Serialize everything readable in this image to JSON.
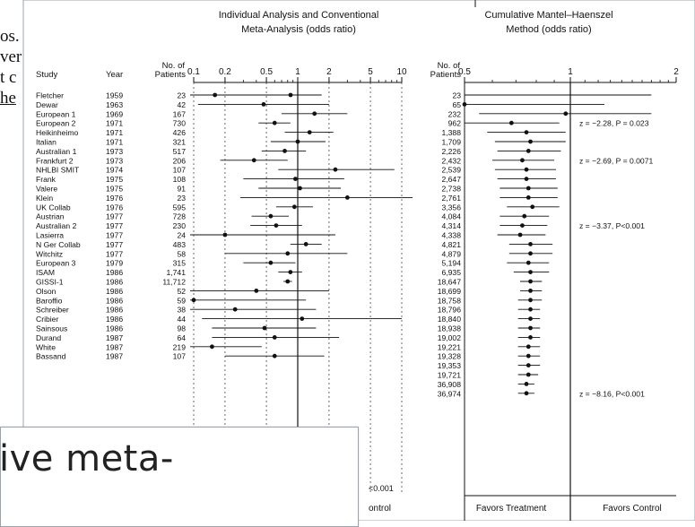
{
  "background_text": [
    "os.",
    "ver",
    "t c",
    "he"
  ],
  "left_panel": {
    "title_line1": "Individual Analysis and Conventional",
    "title_line2": "Meta-Analysis (odds ratio)",
    "col_study": "Study",
    "col_year": "Year",
    "col_patients_1": "No. of",
    "col_patients_2": "Patients",
    "axis_ticks": [
      {
        "label": "0.1",
        "value": 0.1
      },
      {
        "label": "0.2",
        "value": 0.2
      },
      {
        "label": "0.5",
        "value": 0.5
      },
      {
        "label": "1",
        "value": 1
      },
      {
        "label": "2",
        "value": 2
      },
      {
        "label": "5",
        "value": 5
      },
      {
        "label": "10",
        "value": 10
      }
    ],
    "footer_fragment": "ontrol",
    "pvalue_fragment": "<0.001"
  },
  "right_panel": {
    "title_line1": "Cumulative Mantel–Haenszel",
    "title_line2": "Method (odds ratio)",
    "col_patients_1": "No. of",
    "col_patients_2": "Patients",
    "axis_ticks": [
      {
        "label": "0.5",
        "value": 0.5
      },
      {
        "label": "1",
        "value": 1
      },
      {
        "label": "2",
        "value": 2
      }
    ],
    "favors_treatment": "Favors Treatment",
    "favors_control": "Favors Control"
  },
  "chart_data": {
    "type": "forest",
    "x_scale": "log",
    "individual_xlim": [
      0.1,
      10
    ],
    "cumulative_xlim": [
      0.5,
      2
    ],
    "studies": [
      {
        "study": "Fletcher",
        "year": "1959",
        "patients": "23",
        "or": 0.16,
        "lo": 0.03,
        "hi": 1.7,
        "cum_patients": "23",
        "cum_or": 0.16,
        "cum_lo": 0.03,
        "cum_hi": 1.7
      },
      {
        "study": "Dewar",
        "year": "1963",
        "patients": "42",
        "or": 0.47,
        "lo": 0.11,
        "hi": 2.0,
        "cum_patients": "65",
        "cum_or": 0.5,
        "cum_lo": 0.2,
        "cum_hi": 1.25
      },
      {
        "study": "European 1",
        "year": "1969",
        "patients": "167",
        "or": 1.45,
        "lo": 0.7,
        "hi": 3.0,
        "cum_patients": "232",
        "cum_or": 0.97,
        "cum_lo": 0.55,
        "cum_hi": 1.7
      },
      {
        "study": "European 2",
        "year": "1971",
        "patients": "730",
        "or": 0.6,
        "lo": 0.42,
        "hi": 0.85,
        "cum_patients": "962",
        "cum_or": 0.68,
        "cum_lo": 0.5,
        "cum_hi": 0.93
      },
      {
        "study": "Heikinheimo",
        "year": "1971",
        "patients": "426",
        "or": 1.3,
        "lo": 0.75,
        "hi": 2.2,
        "cum_patients": "1,388",
        "cum_or": 0.75,
        "cum_lo": 0.58,
        "cum_hi": 0.97
      },
      {
        "study": "Italian",
        "year": "1971",
        "patients": "321",
        "or": 1.0,
        "lo": 0.55,
        "hi": 1.85,
        "cum_patients": "1,709",
        "cum_or": 0.77,
        "cum_lo": 0.61,
        "cum_hi": 0.97
      },
      {
        "study": "Australian 1",
        "year": "1973",
        "patients": "517",
        "or": 0.75,
        "lo": 0.45,
        "hi": 1.2,
        "cum_patients": "2,226",
        "cum_or": 0.76,
        "cum_lo": 0.62,
        "cum_hi": 0.94
      },
      {
        "study": "Frankfurt 2",
        "year": "1973",
        "patients": "206",
        "or": 0.38,
        "lo": 0.18,
        "hi": 0.8,
        "cum_patients": "2,432",
        "cum_or": 0.73,
        "cum_lo": 0.6,
        "cum_hi": 0.9
      },
      {
        "study": "NHLBI SMIT",
        "year": "1974",
        "patients": "107",
        "or": 2.3,
        "lo": 0.65,
        "hi": 8.5,
        "cum_patients": "2,539",
        "cum_or": 0.75,
        "cum_lo": 0.61,
        "cum_hi": 0.91
      },
      {
        "study": "Frank",
        "year": "1975",
        "patients": "108",
        "or": 0.95,
        "lo": 0.3,
        "hi": 2.8,
        "cum_patients": "2,647",
        "cum_or": 0.75,
        "cum_lo": 0.62,
        "cum_hi": 0.91
      },
      {
        "study": "Valere",
        "year": "1975",
        "patients": "91",
        "or": 1.05,
        "lo": 0.42,
        "hi": 2.6,
        "cum_patients": "2,738",
        "cum_or": 0.76,
        "cum_lo": 0.63,
        "cum_hi": 0.92
      },
      {
        "study": "Klein",
        "year": "1976",
        "patients": "23",
        "or": 3.0,
        "lo": 0.28,
        "hi": 20,
        "cum_patients": "2,761",
        "cum_or": 0.76,
        "cum_lo": 0.63,
        "cum_hi": 0.92
      },
      {
        "study": "UK Collab",
        "year": "1976",
        "patients": "595",
        "or": 0.93,
        "lo": 0.62,
        "hi": 1.4,
        "cum_patients": "3,356",
        "cum_or": 0.78,
        "cum_lo": 0.66,
        "cum_hi": 0.93
      },
      {
        "study": "Austrian",
        "year": "1977",
        "patients": "728",
        "or": 0.55,
        "lo": 0.36,
        "hi": 0.82,
        "cum_patients": "4,084",
        "cum_or": 0.74,
        "cum_lo": 0.63,
        "cum_hi": 0.87
      },
      {
        "study": "Australian 2",
        "year": "1977",
        "patients": "230",
        "or": 0.62,
        "lo": 0.35,
        "hi": 1.1,
        "cum_patients": "4,314",
        "cum_or": 0.73,
        "cum_lo": 0.63,
        "cum_hi": 0.86
      },
      {
        "study": "Lasierra",
        "year": "1977",
        "patients": "24",
        "or": 0.2,
        "lo": 0.03,
        "hi": 2.3,
        "cum_patients": "4,338",
        "cum_or": 0.72,
        "cum_lo": 0.62,
        "cum_hi": 0.85
      },
      {
        "study": "N Ger Collab",
        "year": "1977",
        "patients": "483",
        "or": 1.2,
        "lo": 0.85,
        "hi": 1.7,
        "cum_patients": "4,821",
        "cum_or": 0.77,
        "cum_lo": 0.67,
        "cum_hi": 0.89
      },
      {
        "study": "Witchitz",
        "year": "1977",
        "patients": "58",
        "or": 0.8,
        "lo": 0.2,
        "hi": 3.0,
        "cum_patients": "4,879",
        "cum_or": 0.77,
        "cum_lo": 0.67,
        "cum_hi": 0.89
      },
      {
        "study": "European 3",
        "year": "1979",
        "patients": "315",
        "or": 0.55,
        "lo": 0.3,
        "hi": 0.95,
        "cum_patients": "5,194",
        "cum_or": 0.76,
        "cum_lo": 0.66,
        "cum_hi": 0.87
      },
      {
        "study": "ISAM",
        "year": "1986",
        "patients": "1,741",
        "or": 0.85,
        "lo": 0.65,
        "hi": 1.1,
        "cum_patients": "6,935",
        "cum_or": 0.77,
        "cum_lo": 0.69,
        "cum_hi": 0.87
      },
      {
        "study": "GISSI-1",
        "year": "1986",
        "patients": "11,712",
        "or": 0.8,
        "lo": 0.73,
        "hi": 0.88,
        "cum_patients": "18,647",
        "cum_or": 0.77,
        "cum_lo": 0.72,
        "cum_hi": 0.83
      },
      {
        "study": "Olson",
        "year": "1986",
        "patients": "52",
        "or": 0.4,
        "lo": 0.08,
        "hi": 2.0,
        "cum_patients": "18,699",
        "cum_or": 0.77,
        "cum_lo": 0.72,
        "cum_hi": 0.83
      },
      {
        "study": "Baroffio",
        "year": "1986",
        "patients": "59",
        "or": 0.1,
        "lo": 0.01,
        "hi": 1.2,
        "cum_patients": "18,758",
        "cum_or": 0.77,
        "cum_lo": 0.71,
        "cum_hi": 0.83
      },
      {
        "study": "Schreiber",
        "year": "1986",
        "patients": "38",
        "or": 0.25,
        "lo": 0.04,
        "hi": 1.5,
        "cum_patients": "18,796",
        "cum_or": 0.77,
        "cum_lo": 0.71,
        "cum_hi": 0.82
      },
      {
        "study": "Cribier",
        "year": "1986",
        "patients": "44",
        "or": 1.1,
        "lo": 0.12,
        "hi": 10,
        "cum_patients": "18,840",
        "cum_or": 0.77,
        "cum_lo": 0.71,
        "cum_hi": 0.82
      },
      {
        "study": "Sainsous",
        "year": "1986",
        "patients": "98",
        "or": 0.48,
        "lo": 0.15,
        "hi": 1.5,
        "cum_patients": "18,938",
        "cum_or": 0.77,
        "cum_lo": 0.71,
        "cum_hi": 0.82
      },
      {
        "study": "Durand",
        "year": "1987",
        "patients": "64",
        "or": 0.6,
        "lo": 0.15,
        "hi": 2.5,
        "cum_patients": "19,002",
        "cum_or": 0.77,
        "cum_lo": 0.71,
        "cum_hi": 0.82
      },
      {
        "study": "White",
        "year": "1987",
        "patients": "219",
        "or": 0.15,
        "lo": 0.05,
        "hi": 0.45,
        "cum_patients": "19,221",
        "cum_or": 0.76,
        "cum_lo": 0.71,
        "cum_hi": 0.82
      },
      {
        "study": "Bassand",
        "year": "1987",
        "patients": "107",
        "or": 0.6,
        "lo": 0.2,
        "hi": 1.8,
        "cum_patients": "19,328",
        "cum_or": 0.76,
        "cum_lo": 0.71,
        "cum_hi": 0.82
      },
      {
        "study": "",
        "year": "",
        "patients": "",
        "or": null,
        "lo": null,
        "hi": null,
        "cum_patients": "19,353",
        "cum_or": 0.76,
        "cum_lo": 0.71,
        "cum_hi": 0.82
      },
      {
        "study": "",
        "year": "",
        "patients": "",
        "or": null,
        "lo": null,
        "hi": null,
        "cum_patients": "19,721",
        "cum_or": 0.76,
        "cum_lo": 0.71,
        "cum_hi": 0.81
      },
      {
        "study": "",
        "year": "",
        "patients": "",
        "or": null,
        "lo": null,
        "hi": null,
        "cum_patients": "36,908",
        "cum_or": 0.75,
        "cum_lo": 0.71,
        "cum_hi": 0.79
      },
      {
        "study": "",
        "year": "",
        "patients": "",
        "or": null,
        "lo": null,
        "hi": null,
        "cum_patients": "36,974",
        "cum_or": 0.75,
        "cum_lo": 0.71,
        "cum_hi": 0.79
      }
    ],
    "annotations": [
      {
        "row": 3,
        "text": "z = −2.28, P = 0.023"
      },
      {
        "row": 7,
        "text": "z = −2.69, P = 0.0071"
      },
      {
        "row": 14,
        "text": "z = −3.37, P<0.001"
      },
      {
        "row": 32,
        "text": "z = −8.16, P<0.001"
      }
    ]
  },
  "overlay": {
    "text": "ive meta-"
  }
}
